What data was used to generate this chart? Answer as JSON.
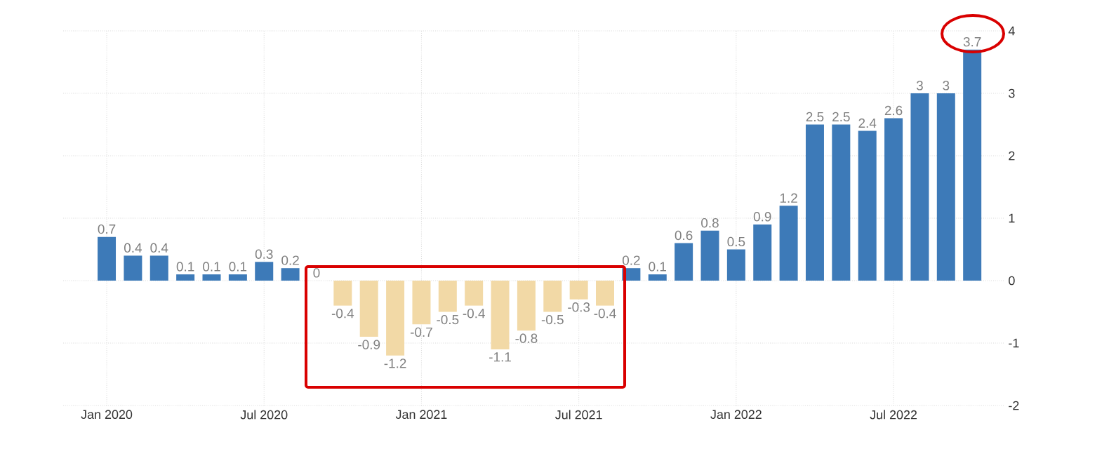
{
  "chart_data": {
    "type": "bar",
    "categories": [
      "Jan 2020",
      null,
      null,
      null,
      null,
      null,
      "Jul 2020",
      null,
      null,
      null,
      null,
      null,
      "Jan 2021",
      null,
      null,
      null,
      null,
      null,
      "Jul 2021",
      null,
      null,
      null,
      null,
      null,
      "Jan 2022",
      null,
      null,
      null,
      null,
      null,
      "Jul 2022",
      null,
      null,
      null
    ],
    "values": [
      0.7,
      0.4,
      0.4,
      0.1,
      0.1,
      0.1,
      0.3,
      0.2,
      0,
      -0.4,
      -0.9,
      -1.2,
      -0.7,
      -0.5,
      -0.4,
      -1.1,
      -0.8,
      -0.5,
      -0.3,
      -0.4,
      0.2,
      0.1,
      0.6,
      0.8,
      0.5,
      0.9,
      1.2,
      2.5,
      2.5,
      2.4,
      2.6,
      3,
      3,
      3.7
    ],
    "colors": [
      "#3d7ab8",
      "#3d7ab8",
      "#3d7ab8",
      "#3d7ab8",
      "#3d7ab8",
      "#3d7ab8",
      "#3d7ab8",
      "#3d7ab8",
      "#3d7ab8",
      "#f2d9a6",
      "#f2d9a6",
      "#f2d9a6",
      "#f2d9a6",
      "#f2d9a6",
      "#f2d9a6",
      "#f2d9a6",
      "#f2d9a6",
      "#f2d9a6",
      "#f2d9a6",
      "#f2d9a6",
      "#3d7ab8",
      "#3d7ab8",
      "#3d7ab8",
      "#3d7ab8",
      "#3d7ab8",
      "#3d7ab8",
      "#3d7ab8",
      "#3d7ab8",
      "#3d7ab8",
      "#3d7ab8",
      "#3d7ab8",
      "#3d7ab8",
      "#3d7ab8",
      "#3d7ab8"
    ],
    "ylim": [
      -2,
      4
    ],
    "yticks": [
      -2,
      -1,
      0,
      1,
      2,
      3,
      4
    ],
    "grid": true,
    "data_labels": true
  }
}
